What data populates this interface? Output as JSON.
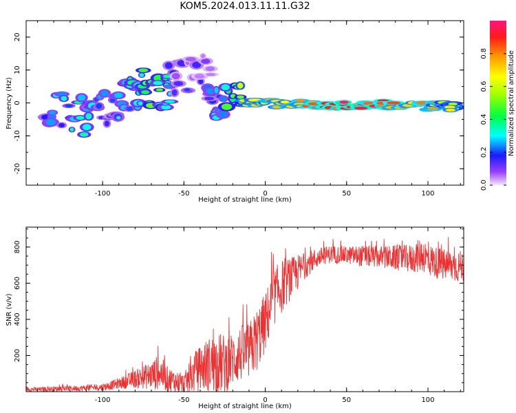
{
  "title": "KOM5.2024.013.11.11.G32",
  "colors": {
    "snr_line": "#ef3030",
    "axes": "#000000",
    "spectral_low": "#9a40ff",
    "spectral_mid": "#3cff3c",
    "spectral_high": "#ff1a1a"
  },
  "chart_data": [
    {
      "id": "spectrogram",
      "type": "heatmap",
      "title": "",
      "xlabel": "Height of straight line (km)",
      "ylabel": "Frequency (Hz)",
      "xlim": [
        -147,
        122
      ],
      "ylim": [
        -25,
        25
      ],
      "xticks": [
        -100,
        -50,
        0,
        50,
        100
      ],
      "yticks": [
        -20,
        -10,
        0,
        10,
        20
      ],
      "grid": false,
      "colorbar": {
        "label": "Normalized spectral amplitude",
        "range": [
          0,
          1
        ],
        "ticks": [
          0.0,
          0.2,
          0.4,
          0.6,
          0.8
        ]
      },
      "description_points": [
        {
          "x": -135,
          "y": -2,
          "amp": 0.15
        },
        {
          "x": -115,
          "y": -4,
          "amp": 0.35
        },
        {
          "x": -100,
          "y": -3,
          "amp": 0.2
        },
        {
          "x": -85,
          "y": 1,
          "amp": 0.3
        },
        {
          "x": -75,
          "y": 4,
          "amp": 0.4
        },
        {
          "x": -62,
          "y": 4,
          "amp": 0.4
        },
        {
          "x": -55,
          "y": 8,
          "amp": 0.15
        },
        {
          "x": -35,
          "y": 9,
          "amp": 0.1
        },
        {
          "x": -30,
          "y": -2,
          "amp": 0.25
        },
        {
          "x": -15,
          "y": 0.5,
          "amp": 0.55
        },
        {
          "x": 0,
          "y": 0,
          "amp": 0.7
        },
        {
          "x": 25,
          "y": -0.5,
          "amp": 0.8
        },
        {
          "x": 50,
          "y": -0.5,
          "amp": 0.95
        },
        {
          "x": 75,
          "y": -0.5,
          "amp": 0.85
        },
        {
          "x": 100,
          "y": -1,
          "amp": 0.75
        },
        {
          "x": 115,
          "y": -1,
          "amp": 0.6
        }
      ]
    },
    {
      "id": "snr",
      "type": "line",
      "title": "",
      "xlabel": "Height of straight line (km)",
      "ylabel": "SNR (v/v)",
      "xlim": [
        -147,
        122
      ],
      "ylim": [
        0,
        910
      ],
      "xticks": [
        -100,
        -50,
        0,
        50,
        100
      ],
      "yticks": [
        200,
        400,
        600,
        800
      ],
      "grid": false,
      "series": [
        {
          "x": [
            -147,
            -140,
            -130,
            -120,
            -110,
            -100,
            -90,
            -80,
            -70,
            -65,
            -60,
            -50,
            -45,
            -40,
            -35,
            -30,
            -25,
            -20,
            -15,
            -10,
            -5,
            0,
            5,
            10,
            15,
            20,
            25,
            30,
            35,
            40,
            50,
            60,
            70,
            80,
            90,
            97,
            100,
            110,
            122
          ],
          "values": [
            15,
            12,
            15,
            18,
            20,
            25,
            45,
            70,
            90,
            110,
            70,
            40,
            90,
            130,
            150,
            160,
            150,
            180,
            210,
            220,
            290,
            380,
            520,
            580,
            620,
            660,
            700,
            730,
            750,
            760,
            755,
            750,
            745,
            740,
            735,
            760,
            730,
            700,
            690
          ],
          "spread": [
            15,
            12,
            15,
            15,
            18,
            20,
            30,
            50,
            80,
            100,
            70,
            60,
            100,
            130,
            150,
            170,
            170,
            150,
            160,
            160,
            180,
            170,
            160,
            150,
            120,
            100,
            70,
            60,
            50,
            50,
            50,
            60,
            60,
            70,
            80,
            100,
            90,
            90,
            90
          ]
        }
      ]
    }
  ]
}
